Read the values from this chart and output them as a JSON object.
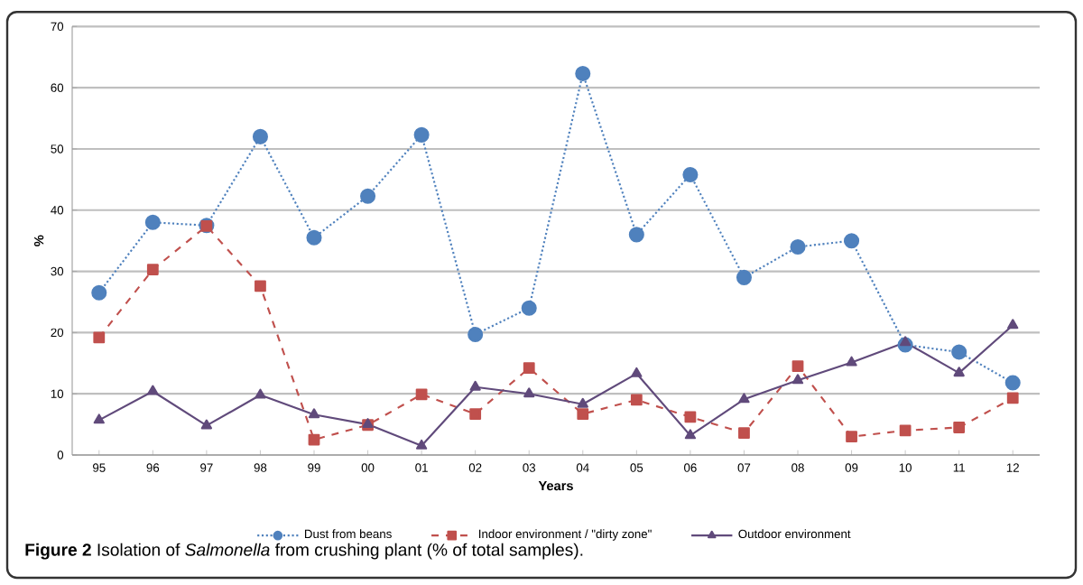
{
  "chart_data": {
    "type": "line",
    "xlabel": "Years",
    "ylabel": "%",
    "categories": [
      "95",
      "96",
      "97",
      "98",
      "99",
      "00",
      "01",
      "02",
      "03",
      "04",
      "05",
      "06",
      "07",
      "08",
      "09",
      "10",
      "11",
      "12"
    ],
    "ylim": [
      0,
      70
    ],
    "yticks": [
      0,
      10,
      20,
      30,
      40,
      50,
      60,
      70
    ],
    "grid": "y",
    "legend": "bottom",
    "series": [
      {
        "name": "Dust from beans",
        "color": "#4f81bd",
        "marker": "circle",
        "line_style": "dotted",
        "values": [
          26.5,
          38,
          37.5,
          52,
          35.5,
          42.3,
          52.3,
          19.7,
          24,
          62.3,
          36,
          45.8,
          29,
          34,
          35,
          18,
          16.8,
          11.8
        ]
      },
      {
        "name": "Indoor environment / \"dirty zone\"",
        "color": "#c0504d",
        "marker": "square",
        "line_style": "dashed",
        "values": [
          19.2,
          30.3,
          37.4,
          27.6,
          2.5,
          4.9,
          9.9,
          6.7,
          14.2,
          6.7,
          9,
          6.2,
          3.6,
          14.5,
          3,
          4,
          4.5,
          9.3
        ]
      },
      {
        "name": "Outdoor environment",
        "color": "#604a7b",
        "marker": "triangle",
        "line_style": "solid",
        "values": [
          5.7,
          10.4,
          4.8,
          9.8,
          6.6,
          5.0,
          1.5,
          11.1,
          10,
          8.3,
          13.3,
          3.2,
          9.1,
          12.2,
          15.1,
          18.4,
          13.4,
          21.2
        ]
      }
    ],
    "annotations": [
      "**Figure 2** Isolation of *Salmonella* from crushing plant (% of total samples)."
    ]
  }
}
